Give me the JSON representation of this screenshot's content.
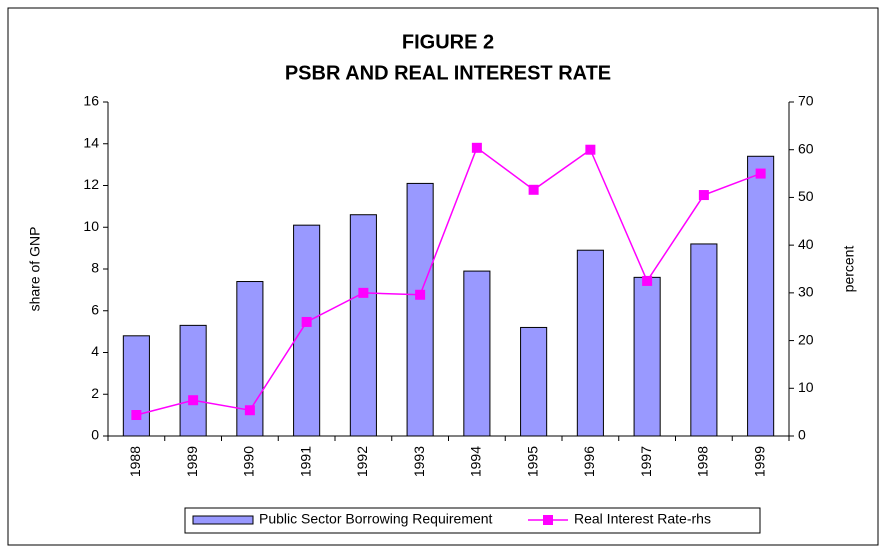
{
  "chart_data": {
    "type": "bar_line",
    "title": "FIGURE 2",
    "subtitle": "PSBR AND REAL INTEREST RATE",
    "y_label": "share of GNP",
    "y2_label": "percent",
    "categories": [
      "1988",
      "1989",
      "1990",
      "1991",
      "1992",
      "1993",
      "1994",
      "1995",
      "1996",
      "1997",
      "1998",
      "1999"
    ],
    "series": [
      {
        "name": "Public Sector Borrowing Requirement",
        "type": "bar",
        "color": "#9999ff",
        "values": [
          4.8,
          5.3,
          7.4,
          10.1,
          10.6,
          12.1,
          7.9,
          5.2,
          8.9,
          7.6,
          9.2,
          13.4
        ]
      },
      {
        "name": "Real Interest Rate-rhs",
        "type": "line",
        "axis": "y2",
        "color": "#ff00ff",
        "values": [
          4.4,
          7.5,
          5.4,
          23.9,
          30,
          29.6,
          60.4,
          51.6,
          60,
          32.5,
          50.5,
          55
        ]
      }
    ],
    "ylim": [
      0,
      16
    ],
    "yticks": [
      0,
      2,
      4,
      6,
      8,
      10,
      12,
      14,
      16
    ],
    "y2lim": [
      0,
      70
    ],
    "y2ticks": [
      0,
      10,
      20,
      30,
      40,
      50,
      60,
      70
    ],
    "grid": false,
    "legend": "bottom"
  }
}
